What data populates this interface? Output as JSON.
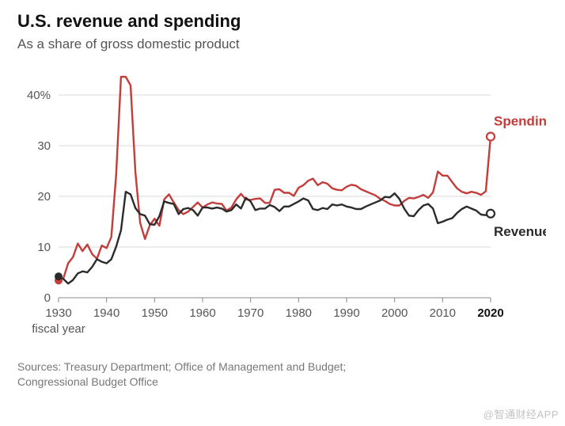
{
  "title": "U.S. revenue and spending",
  "subtitle": "As a share of gross domestic product",
  "chart": {
    "type": "line",
    "background_color": "#ffffff",
    "grid_color": "#d9d9d9",
    "axis_color": "#888888",
    "text_color": "#555555",
    "fontsize_ticks": 15,
    "fontsize_series_label": 17,
    "line_width": 2.4,
    "x": {
      "min": 1930,
      "max": 2020,
      "ticks": [
        1930,
        1940,
        1950,
        1960,
        1970,
        1980,
        1990,
        2000,
        2010,
        2020
      ],
      "tick_labels": [
        "1930",
        "1940",
        "1950",
        "1960",
        "1970",
        "1980",
        "1990",
        "2000",
        "2010",
        "2020"
      ],
      "bold_last_tick": true,
      "axis_label": "fiscal year"
    },
    "y": {
      "min": 0,
      "max": 45,
      "ticks": [
        0,
        10,
        20,
        30,
        40
      ],
      "tick_labels": [
        "0",
        "10",
        "20",
        "30",
        "40%"
      ]
    },
    "series": [
      {
        "id": "spending",
        "label": "Spending",
        "color": "#c33d3a",
        "start_marker": "filled",
        "end_marker": "open",
        "marker_radius": 5,
        "label_pos": "end-top",
        "years": [
          1930,
          1931,
          1932,
          1933,
          1934,
          1935,
          1936,
          1937,
          1938,
          1939,
          1940,
          1941,
          1942,
          1943,
          1944,
          1945,
          1946,
          1947,
          1948,
          1949,
          1950,
          1951,
          1952,
          1953,
          1954,
          1955,
          1956,
          1957,
          1958,
          1959,
          1960,
          1961,
          1962,
          1963,
          1964,
          1965,
          1966,
          1967,
          1968,
          1969,
          1970,
          1971,
          1972,
          1973,
          1974,
          1975,
          1976,
          1977,
          1978,
          1979,
          1980,
          1981,
          1982,
          1983,
          1984,
          1985,
          1986,
          1987,
          1988,
          1989,
          1990,
          1991,
          1992,
          1993,
          1994,
          1995,
          1996,
          1997,
          1998,
          1999,
          2000,
          2001,
          2002,
          2003,
          2004,
          2005,
          2006,
          2007,
          2008,
          2009,
          2010,
          2011,
          2012,
          2013,
          2014,
          2015,
          2016,
          2017,
          2018,
          2019,
          2020
        ],
        "values": [
          3.4,
          3.8,
          6.8,
          8.0,
          10.7,
          9.2,
          10.5,
          8.6,
          7.7,
          10.3,
          9.8,
          12.0,
          24.3,
          43.6,
          43.6,
          41.9,
          24.8,
          14.8,
          11.6,
          14.3,
          15.6,
          14.2,
          19.4,
          20.4,
          18.8,
          17.3,
          16.5,
          17.0,
          17.9,
          18.8,
          17.8,
          18.4,
          18.8,
          18.6,
          18.5,
          17.2,
          17.8,
          19.4,
          20.5,
          19.4,
          19.3,
          19.5,
          19.6,
          18.7,
          18.7,
          21.3,
          21.4,
          20.7,
          20.7,
          20.1,
          21.7,
          22.2,
          23.1,
          23.5,
          22.2,
          22.8,
          22.5,
          21.6,
          21.3,
          21.2,
          21.9,
          22.3,
          22.1,
          21.4,
          21.0,
          20.6,
          20.2,
          19.5,
          19.1,
          18.5,
          18.2,
          18.2,
          19.1,
          19.7,
          19.6,
          19.9,
          20.3,
          19.7,
          20.8,
          24.9,
          24.1,
          24.1,
          22.8,
          21.6,
          20.9,
          20.6,
          20.9,
          20.7,
          20.3,
          21.0,
          31.8
        ]
      },
      {
        "id": "revenue",
        "label": "Revenue",
        "color": "#2b2b2b",
        "start_marker": "filled",
        "end_marker": "open",
        "marker_radius": 5,
        "label_pos": "end-bottom",
        "years": [
          1930,
          1931,
          1932,
          1933,
          1934,
          1935,
          1936,
          1937,
          1938,
          1939,
          1940,
          1941,
          1942,
          1943,
          1944,
          1945,
          1946,
          1947,
          1948,
          1949,
          1950,
          1951,
          1952,
          1953,
          1954,
          1955,
          1956,
          1957,
          1958,
          1959,
          1960,
          1961,
          1962,
          1963,
          1964,
          1965,
          1966,
          1967,
          1968,
          1969,
          1970,
          1971,
          1972,
          1973,
          1974,
          1975,
          1976,
          1977,
          1978,
          1979,
          1980,
          1981,
          1982,
          1983,
          1984,
          1985,
          1986,
          1987,
          1988,
          1989,
          1990,
          1991,
          1992,
          1993,
          1994,
          1995,
          1996,
          1997,
          1998,
          1999,
          2000,
          2001,
          2002,
          2003,
          2004,
          2005,
          2006,
          2007,
          2008,
          2009,
          2010,
          2011,
          2012,
          2013,
          2014,
          2015,
          2016,
          2017,
          2018,
          2019,
          2020
        ],
        "values": [
          4.2,
          3.7,
          2.8,
          3.5,
          4.8,
          5.2,
          5.0,
          6.1,
          7.6,
          7.1,
          6.8,
          7.6,
          10.1,
          13.3,
          20.9,
          20.4,
          17.7,
          16.5,
          16.2,
          14.5,
          14.4,
          16.1,
          19.0,
          18.7,
          18.5,
          16.5,
          17.5,
          17.7,
          17.3,
          16.2,
          17.8,
          17.8,
          17.6,
          17.8,
          17.6,
          17.0,
          17.3,
          18.4,
          17.6,
          19.7,
          19.0,
          17.3,
          17.6,
          17.6,
          18.3,
          17.9,
          17.1,
          18.0,
          18.0,
          18.5,
          19.0,
          19.6,
          19.2,
          17.5,
          17.3,
          17.7,
          17.5,
          18.4,
          18.2,
          18.4,
          18.0,
          17.8,
          17.5,
          17.5,
          18.0,
          18.4,
          18.8,
          19.2,
          19.9,
          19.8,
          20.6,
          19.5,
          17.6,
          16.2,
          16.1,
          17.3,
          18.2,
          18.5,
          17.6,
          14.7,
          15.0,
          15.4,
          15.7,
          16.7,
          17.5,
          18.0,
          17.6,
          17.2,
          16.4,
          16.3,
          16.6
        ]
      }
    ]
  },
  "sources_line1": "Sources: Treasury Department; Office of Management and Budget;",
  "sources_line2": "Congressional Budget Office",
  "watermark": "@智通财经APP"
}
